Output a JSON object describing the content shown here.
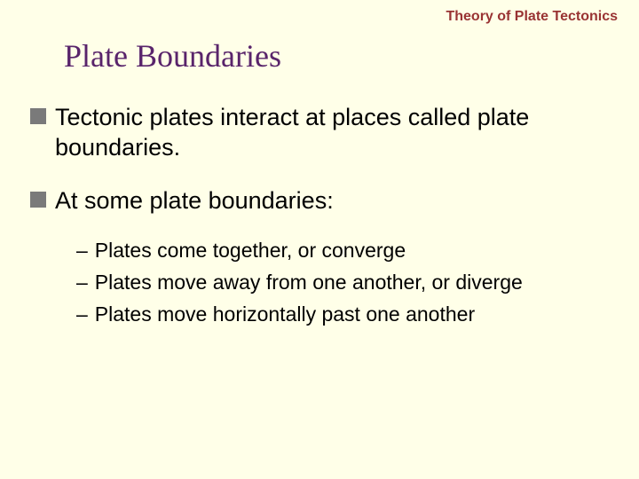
{
  "header": {
    "text": "Theory of Plate Tectonics",
    "color": "#993333",
    "fontsize": 16
  },
  "title": {
    "text": "Plate Boundaries",
    "color": "#59246b",
    "fontsize": 36
  },
  "bullets": {
    "square_color": "#7a7a7a",
    "square_size": 18,
    "fontsize": 27,
    "items": [
      "Tectonic plates interact at places called plate boundaries.",
      "At some plate boundaries:"
    ]
  },
  "sub_bullets": {
    "dash": "–",
    "fontsize": 23,
    "items": [
      "Plates come together, or converge",
      "Plates move away from one another, or diverge",
      "Plates move horizontally past one another"
    ]
  },
  "background_color": "#ffffe8"
}
